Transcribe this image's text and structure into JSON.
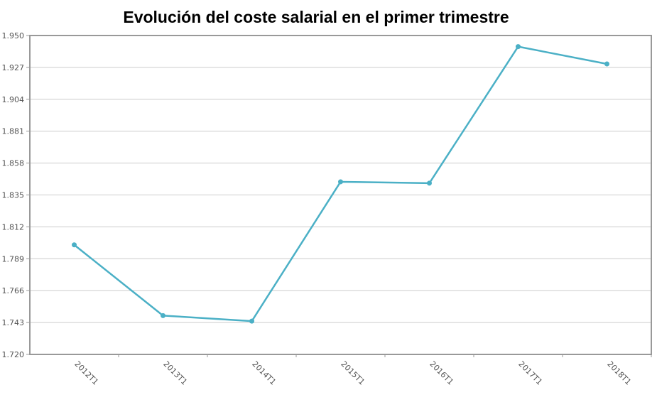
{
  "chart_data": {
    "type": "line",
    "title": "Evolución del coste salarial en el primer trimestre",
    "xlabel": "",
    "ylabel": "",
    "categories": [
      "2012T1",
      "2013T1",
      "2014T1",
      "2015T1",
      "2016T1",
      "2017T1",
      "2018T1"
    ],
    "values": [
      1.799,
      1.748,
      1.744,
      1.8445,
      1.8435,
      1.942,
      1.9295
    ],
    "ylim": [
      1.72,
      1.95
    ],
    "yticks": [
      "1.720",
      "1.743",
      "1.766",
      "1.789",
      "1.812",
      "1.835",
      "1.858",
      "1.881",
      "1.904",
      "1.927",
      "1.950"
    ],
    "grid": true,
    "legend": "none",
    "line_color": "#4bb0c6",
    "grid_color": "#cccccc",
    "axis_color": "#999999"
  }
}
